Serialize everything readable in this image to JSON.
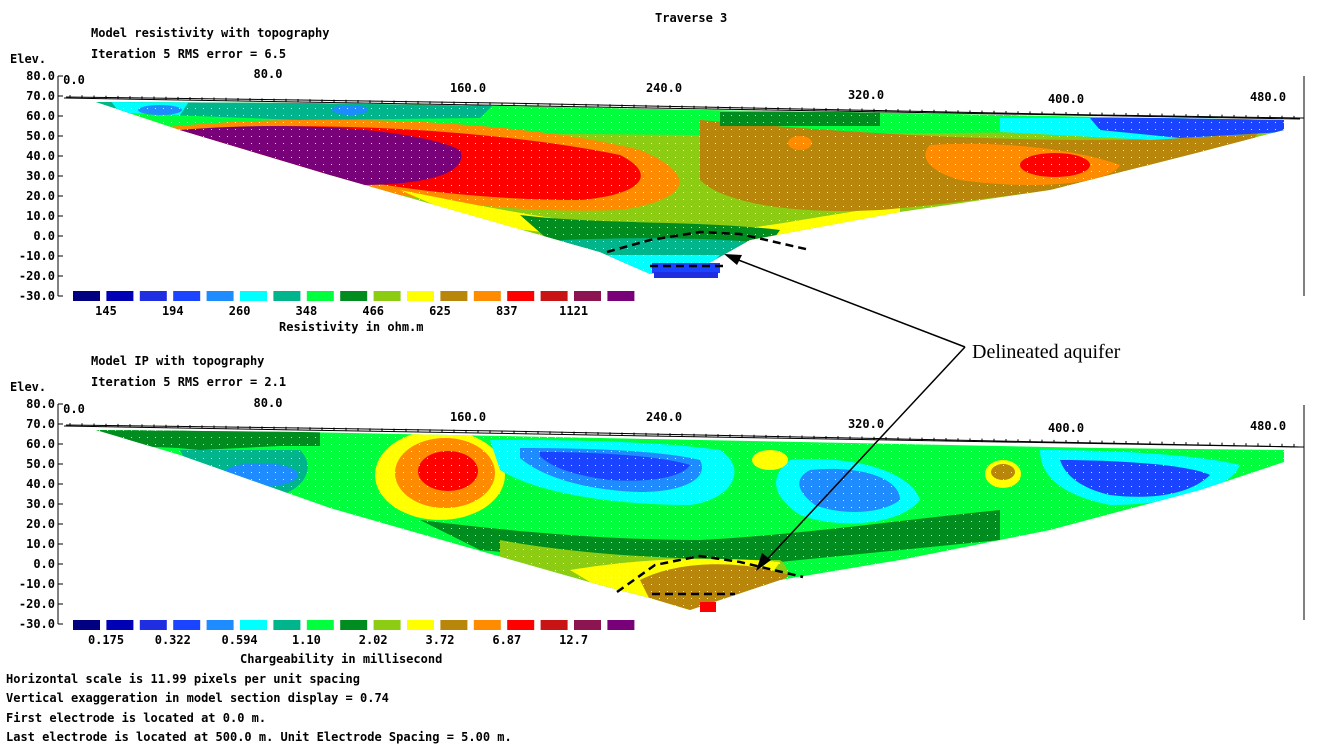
{
  "page_title": "Traverse 3",
  "annotation": "Delineated aquifer",
  "palette": [
    "#000080",
    "#0000b4",
    "#1e2ee0",
    "#1a44ff",
    "#1e8cff",
    "#00ffff",
    "#00b48c",
    "#00ff3c",
    "#008c1e",
    "#8ccd14",
    "#ffff00",
    "#b8860b",
    "#ff8c00",
    "#ff0000",
    "#c81414",
    "#8c1450",
    "#780078"
  ],
  "chart_data": [
    {
      "type": "heatmap",
      "panel": "resistivity",
      "title": "Model resistivity with topography",
      "subtitle": "Iteration 5 RMS error = 6.5",
      "ylabel": "Elev.",
      "x_ticks": [
        "0.0",
        "80.0",
        "160.0",
        "240.0",
        "320.0",
        "400.0",
        "480.0"
      ],
      "y_ticks": [
        "80.0",
        "70.0",
        "60.0",
        "50.0",
        "40.0",
        "30.0",
        "20.0",
        "10.0",
        "0.0",
        "-10.0",
        "-20.0",
        "-30.0"
      ],
      "xlim": [
        0,
        500
      ],
      "ylim": [
        -30,
        80
      ],
      "colorbar_labels": [
        "145",
        "194",
        "260",
        "348",
        "466",
        "625",
        "837",
        "1121"
      ],
      "colorbar_title": "Resistivity in ohm.m"
    },
    {
      "type": "heatmap",
      "panel": "ip",
      "title": "Model IP with topography",
      "subtitle": "Iteration 5 RMS error = 2.1",
      "ylabel": "Elev.",
      "x_ticks": [
        "0.0",
        "80.0",
        "160.0",
        "240.0",
        "320.0",
        "400.0",
        "480.0"
      ],
      "y_ticks": [
        "80.0",
        "70.0",
        "60.0",
        "50.0",
        "40.0",
        "30.0",
        "20.0",
        "10.0",
        "0.0",
        "-10.0",
        "-20.0",
        "-30.0"
      ],
      "xlim": [
        0,
        500
      ],
      "ylim": [
        -30,
        80
      ],
      "colorbar_labels": [
        "0.175",
        "0.322",
        "0.594",
        "1.10",
        "2.02",
        "3.72",
        "6.87",
        "12.7"
      ],
      "colorbar_title": "Chargeability in millisecond"
    }
  ],
  "footer": [
    "Horizontal scale is 11.99 pixels per unit spacing",
    "Vertical exaggeration in model section display = 0.74",
    "First electrode is located at 0.0  m.",
    "Last electrode is located at 500.0 m.    Unit Electrode Spacing = 5.00 m."
  ]
}
